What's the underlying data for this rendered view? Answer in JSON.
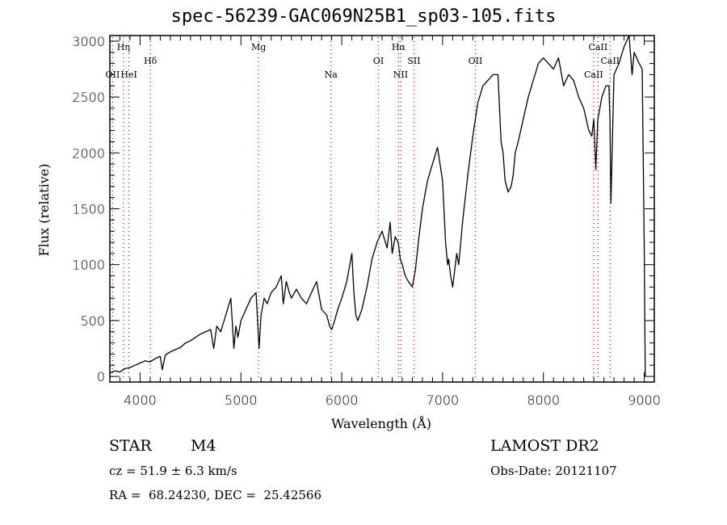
{
  "chart_data": {
    "type": "line",
    "title": "spec-56239-GAC069N25B1_sp03-105.fits",
    "xlabel": "Wavelength (Å)",
    "ylabel": "Flux (relative)",
    "xlim": [
      3700,
      9100
    ],
    "ylim": [
      -50,
      3050
    ],
    "xticks": [
      4000,
      5000,
      6000,
      7000,
      8000,
      9000
    ],
    "xtick_labels": [
      "4000",
      "5000",
      "6000",
      "7000",
      "8000",
      "9000"
    ],
    "yticks": [
      0,
      500,
      1000,
      1500,
      2000,
      2500,
      3000
    ],
    "ytick_labels": [
      "0",
      "500",
      "1000",
      "1500",
      "2000",
      "2500",
      "3000"
    ],
    "grid": false,
    "series": [
      {
        "name": "spectrum",
        "color": "#000000",
        "x": [
          3700,
          3750,
          3800,
          3850,
          3900,
          3950,
          4000,
          4050,
          4100,
          4150,
          4200,
          4220,
          4250,
          4300,
          4350,
          4400,
          4450,
          4500,
          4550,
          4600,
          4650,
          4700,
          4730,
          4760,
          4800,
          4850,
          4900,
          4930,
          4950,
          4970,
          5000,
          5050,
          5100,
          5150,
          5180,
          5200,
          5230,
          5260,
          5300,
          5350,
          5400,
          5420,
          5450,
          5480,
          5500,
          5550,
          5600,
          5650,
          5700,
          5750,
          5800,
          5850,
          5880,
          5900,
          5930,
          5960,
          6000,
          6050,
          6100,
          6120,
          6140,
          6160,
          6200,
          6250,
          6300,
          6350,
          6400,
          6450,
          6480,
          6500,
          6530,
          6560,
          6580,
          6600,
          6630,
          6660,
          6700,
          6730,
          6760,
          6800,
          6850,
          6900,
          6950,
          7000,
          7030,
          7050,
          7060,
          7080,
          7100,
          7120,
          7140,
          7160,
          7200,
          7250,
          7300,
          7350,
          7400,
          7450,
          7500,
          7550,
          7580,
          7600,
          7620,
          7650,
          7680,
          7700,
          7720,
          7750,
          7800,
          7850,
          7900,
          7950,
          8000,
          8050,
          8100,
          8150,
          8180,
          8200,
          8250,
          8300,
          8350,
          8400,
          8450,
          8480,
          8500,
          8520,
          8540,
          8560,
          8580,
          8600,
          8620,
          8650,
          8660,
          8670,
          8700,
          8750,
          8800,
          8850,
          8880,
          8900,
          8950,
          8980,
          9000,
          9010
        ],
        "y": [
          30,
          50,
          40,
          70,
          80,
          100,
          120,
          140,
          130,
          160,
          180,
          60,
          190,
          220,
          240,
          260,
          300,
          320,
          350,
          380,
          400,
          420,
          250,
          450,
          400,
          550,
          700,
          250,
          450,
          350,
          500,
          600,
          700,
          750,
          250,
          550,
          700,
          650,
          750,
          800,
          900,
          650,
          850,
          750,
          700,
          780,
          700,
          650,
          750,
          850,
          600,
          550,
          450,
          420,
          500,
          600,
          700,
          850,
          1100,
          750,
          550,
          500,
          600,
          800,
          1050,
          1200,
          1300,
          1150,
          1380,
          1100,
          1250,
          1200,
          1050,
          1000,
          900,
          850,
          800,
          950,
          1200,
          1500,
          1750,
          1900,
          2050,
          1750,
          1200,
          1000,
          1050,
          900,
          800,
          950,
          1100,
          1000,
          1400,
          1800,
          2150,
          2450,
          2600,
          2650,
          2700,
          2700,
          2100,
          2000,
          1750,
          1650,
          1700,
          1800,
          2000,
          2100,
          2300,
          2500,
          2650,
          2800,
          2850,
          2800,
          2750,
          2850,
          2700,
          2600,
          2700,
          2650,
          2500,
          2400,
          2200,
          2150,
          2300,
          1850,
          2300,
          2400,
          2500,
          2550,
          2600,
          2600,
          2300,
          1550,
          2700,
          2800,
          2950,
          3050,
          2700,
          2900,
          2800,
          2750,
          1200,
          0
        ]
      }
    ],
    "line_markers": [
      {
        "label": "OII",
        "wavelength": 3727,
        "row": 3
      },
      {
        "label": "Hη",
        "wavelength": 3835,
        "row": 1
      },
      {
        "label": "HeI",
        "wavelength": 3889,
        "row": 3
      },
      {
        "label": "Hδ",
        "wavelength": 4102,
        "row": 2
      },
      {
        "label": "Mg",
        "wavelength": 5175,
        "row": 1
      },
      {
        "label": "Na",
        "wavelength": 5893,
        "row": 3
      },
      {
        "label": "OI",
        "wavelength": 6364,
        "row": 2
      },
      {
        "label": "Hα",
        "wavelength": 6563,
        "row": 1
      },
      {
        "label": "NII",
        "wavelength": 6584,
        "row": 3
      },
      {
        "label": "SII",
        "wavelength": 6716,
        "row": 2
      },
      {
        "label": "OII",
        "wavelength": 7325,
        "row": 2
      },
      {
        "label": "CaII",
        "wavelength": 8498,
        "row": 3
      },
      {
        "label": "CaII",
        "wavelength": 8542,
        "row": 1
      },
      {
        "label": "CaII",
        "wavelength": 8662,
        "row": 2
      }
    ],
    "marker_color": "#c00000"
  },
  "info": {
    "object_class": "STAR",
    "subclass": "M4",
    "survey": "LAMOST DR2",
    "redshift": "cz = 51.9 ± 6.3 km/s",
    "obs_date": "Obs-Date: 20121107",
    "coords": "RA =  68.24230, DEC =  25.42566"
  }
}
